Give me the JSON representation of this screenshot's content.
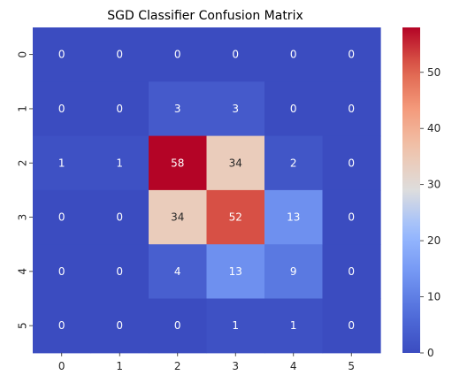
{
  "chart_data": {
    "type": "heatmap",
    "title": "SGD Classifier Confusion Matrix",
    "xlabel": "",
    "ylabel": "",
    "x_categories": [
      "0",
      "1",
      "2",
      "3",
      "4",
      "5"
    ],
    "y_categories": [
      "0",
      "1",
      "2",
      "3",
      "4",
      "5"
    ],
    "values": [
      [
        0,
        0,
        0,
        0,
        0,
        0
      ],
      [
        0,
        0,
        3,
        3,
        0,
        0
      ],
      [
        1,
        1,
        58,
        34,
        2,
        0
      ],
      [
        0,
        0,
        34,
        52,
        13,
        0
      ],
      [
        0,
        0,
        4,
        13,
        9,
        0
      ],
      [
        0,
        0,
        0,
        1,
        1,
        0
      ]
    ],
    "colormap": "coolwarm",
    "vmin": 0,
    "vmax": 58,
    "annotations": true,
    "colorbar": {
      "ticks": [
        0,
        10,
        20,
        30,
        40,
        50
      ],
      "tick_labels": [
        "0",
        "10",
        "20",
        "30",
        "40",
        "50"
      ]
    },
    "grid": false,
    "colors": {
      "low": "#3b4cc0",
      "mid": "#dddddd",
      "high": "#b40426"
    }
  }
}
